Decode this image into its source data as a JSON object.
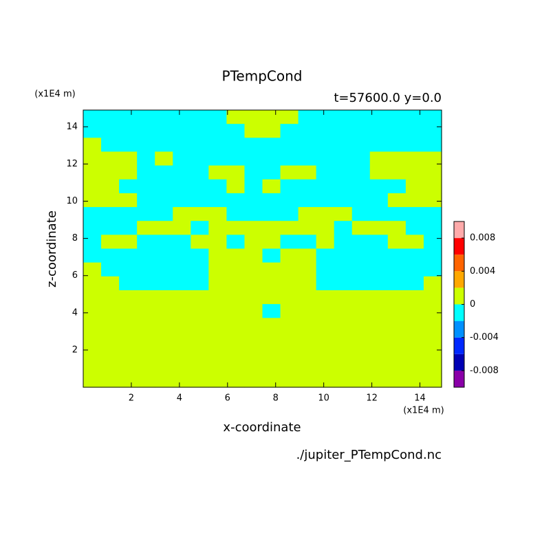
{
  "chart_data": {
    "type": "contour",
    "title": "PTempCond",
    "subtitle": "t=57600.0 y=0.0",
    "x_label": "x-coordinate",
    "y_label": "z-coordinate",
    "x_unit": "(x1E4 m)",
    "y_unit": "(x1E4 m)",
    "source": "./jupiter_PTempCond.nc",
    "xlim": [
      0,
      14.9
    ],
    "ylim": [
      0,
      14.9
    ],
    "xticks": [
      2,
      4,
      6,
      8,
      10,
      12,
      14
    ],
    "yticks": [
      2,
      4,
      6,
      8,
      10,
      12,
      14
    ],
    "levels": [
      -0.01,
      -0.008,
      -0.006,
      -0.004,
      -0.002,
      0,
      0.002,
      0.004,
      0.006,
      0.008,
      0.01
    ],
    "colors": [
      "#8a00a8",
      "#0000b4",
      "#0028ff",
      "#0090ff",
      "#00ffff",
      "#ccff00",
      "#ffa800",
      "#ff6400",
      "#ff0000",
      "#ffaaaa"
    ],
    "colorbar_ticks": [
      -0.008,
      -0.004,
      0,
      0.004,
      0.008
    ],
    "z": [
      [
        -0.001,
        -0.001,
        -0.001,
        -0.001,
        -0.001,
        -0.001,
        -0.001,
        -0.001,
        0.001,
        0.001,
        0.001,
        0.001,
        -0.001,
        -0.001,
        -0.001,
        -0.001,
        -0.001,
        -0.001,
        -0.001,
        -0.001
      ],
      [
        -0.001,
        -0.001,
        -0.001,
        -0.001,
        -0.001,
        -0.001,
        -0.001,
        -0.001,
        -0.001,
        0.001,
        0.001,
        -0.001,
        -0.001,
        -0.001,
        -0.001,
        -0.001,
        -0.001,
        -0.001,
        -0.001,
        -0.001
      ],
      [
        0.001,
        -0.001,
        -0.001,
        -0.001,
        -0.001,
        -0.001,
        -0.001,
        -0.001,
        -0.001,
        -0.001,
        -0.001,
        -0.001,
        -0.001,
        -0.001,
        -0.001,
        -0.001,
        -0.001,
        -0.001,
        -0.001,
        -0.001
      ],
      [
        0.001,
        0.001,
        0.001,
        -0.001,
        0.001,
        -0.001,
        -0.001,
        -0.001,
        -0.001,
        -0.001,
        -0.001,
        -0.001,
        -0.001,
        -0.001,
        -0.001,
        -0.001,
        0.001,
        0.001,
        0.001,
        0.001
      ],
      [
        0.001,
        0.001,
        0.001,
        -0.001,
        -0.001,
        -0.001,
        -0.001,
        0.001,
        0.001,
        -0.001,
        -0.001,
        0.001,
        0.001,
        -0.001,
        -0.001,
        -0.001,
        0.001,
        0.001,
        0.001,
        0.001
      ],
      [
        0.001,
        0.001,
        -0.001,
        -0.001,
        -0.001,
        -0.001,
        -0.001,
        -0.001,
        0.001,
        -0.001,
        0.001,
        -0.001,
        -0.001,
        -0.001,
        -0.001,
        -0.001,
        -0.001,
        -0.001,
        0.001,
        0.001
      ],
      [
        0.001,
        0.001,
        0.001,
        -0.001,
        -0.001,
        -0.001,
        -0.001,
        -0.001,
        -0.001,
        -0.001,
        -0.001,
        -0.001,
        -0.001,
        -0.001,
        -0.001,
        -0.001,
        -0.001,
        0.001,
        0.001,
        0.001
      ],
      [
        -0.001,
        -0.001,
        -0.001,
        -0.001,
        -0.001,
        0.001,
        0.001,
        0.001,
        -0.001,
        -0.001,
        -0.001,
        -0.001,
        0.001,
        0.001,
        0.001,
        -0.001,
        -0.001,
        -0.001,
        -0.001,
        -0.001
      ],
      [
        -0.001,
        -0.001,
        -0.001,
        0.001,
        0.001,
        0.001,
        -0.001,
        0.001,
        0.001,
        0.001,
        0.001,
        0.001,
        0.001,
        0.001,
        -0.001,
        0.001,
        0.001,
        0.001,
        -0.001,
        -0.001
      ],
      [
        -0.001,
        0.001,
        0.001,
        -0.001,
        -0.001,
        -0.001,
        0.001,
        0.001,
        -0.001,
        0.001,
        0.001,
        -0.001,
        -0.001,
        0.001,
        -0.001,
        -0.001,
        -0.001,
        0.001,
        0.001,
        -0.001
      ],
      [
        -0.001,
        -0.001,
        -0.001,
        -0.001,
        -0.001,
        -0.001,
        -0.001,
        0.001,
        0.001,
        0.001,
        -0.001,
        0.001,
        0.001,
        -0.001,
        -0.001,
        -0.001,
        -0.001,
        -0.001,
        -0.001,
        -0.001
      ],
      [
        0.001,
        -0.001,
        -0.001,
        -0.001,
        -0.001,
        -0.001,
        -0.001,
        0.001,
        0.001,
        0.001,
        0.001,
        0.001,
        0.001,
        -0.001,
        -0.001,
        -0.001,
        -0.001,
        -0.001,
        -0.001,
        -0.001
      ],
      [
        0.001,
        0.001,
        -0.001,
        -0.001,
        -0.001,
        -0.001,
        -0.001,
        0.001,
        0.001,
        0.001,
        0.001,
        0.001,
        0.001,
        -0.001,
        -0.001,
        -0.001,
        -0.001,
        -0.001,
        -0.001,
        0.001
      ],
      [
        0.001,
        0.001,
        0.001,
        0.001,
        0.001,
        0.001,
        0.001,
        0.001,
        0.001,
        0.001,
        0.001,
        0.001,
        0.001,
        0.001,
        0.001,
        0.001,
        0.001,
        0.001,
        0.001,
        0.001
      ],
      [
        0.001,
        0.001,
        0.001,
        0.001,
        0.001,
        0.001,
        0.001,
        0.001,
        0.001,
        0.001,
        -0.001,
        0.001,
        0.001,
        0.001,
        0.001,
        0.001,
        0.001,
        0.001,
        0.001,
        0.001
      ],
      [
        0.001,
        0.001,
        0.001,
        0.001,
        0.001,
        0.001,
        0.001,
        0.001,
        0.001,
        0.001,
        0.001,
        0.001,
        0.001,
        0.001,
        0.001,
        0.001,
        0.001,
        0.001,
        0.001,
        0.001
      ],
      [
        0.001,
        0.001,
        0.001,
        0.001,
        0.001,
        0.001,
        0.001,
        0.001,
        0.001,
        0.001,
        0.001,
        0.001,
        0.001,
        0.001,
        0.001,
        0.001,
        0.001,
        0.001,
        0.001,
        0.001
      ],
      [
        0.001,
        0.001,
        0.001,
        0.001,
        0.001,
        0.001,
        0.001,
        0.001,
        0.001,
        0.001,
        0.001,
        0.001,
        0.001,
        0.001,
        0.001,
        0.001,
        0.001,
        0.001,
        0.001,
        0.001
      ],
      [
        0.001,
        0.001,
        0.001,
        0.001,
        0.001,
        0.001,
        0.001,
        0.001,
        0.001,
        0.001,
        0.001,
        0.001,
        0.001,
        0.001,
        0.001,
        0.001,
        0.001,
        0.001,
        0.001,
        0.001
      ],
      [
        0.001,
        0.001,
        0.001,
        0.001,
        0.001,
        0.001,
        0.001,
        0.001,
        0.001,
        0.001,
        0.001,
        0.001,
        0.001,
        0.001,
        0.001,
        0.001,
        0.001,
        0.001,
        0.001,
        0.001
      ]
    ]
  }
}
